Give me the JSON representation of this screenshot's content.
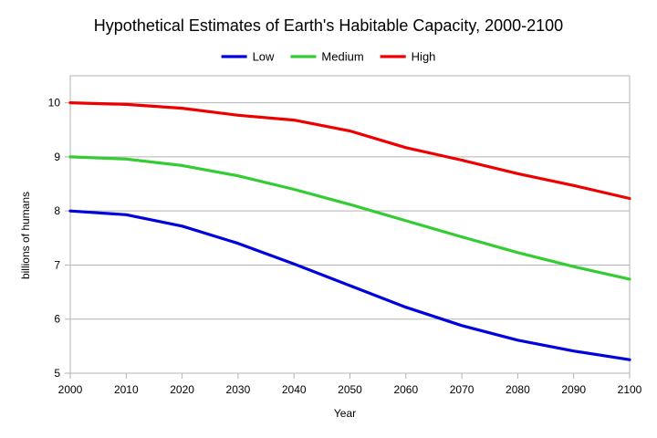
{
  "chart_data": {
    "type": "line",
    "title": "Hypothetical Estimates of Earth's Habitable Capacity, 2000-2100",
    "xlabel": "Year",
    "ylabel": "billions of humans",
    "x": [
      2000,
      2010,
      2020,
      2030,
      2040,
      2050,
      2060,
      2070,
      2080,
      2090,
      2100
    ],
    "xlim": [
      2000,
      2100
    ],
    "ylim": [
      5,
      10.5
    ],
    "yticks": [
      5,
      6,
      7,
      8,
      9,
      10
    ],
    "grid": "horizontal",
    "legend_position": "top",
    "series": [
      {
        "name": "Low",
        "color": "#0000dd",
        "values": [
          8.0,
          7.93,
          7.72,
          7.4,
          7.02,
          6.62,
          6.22,
          5.88,
          5.61,
          5.41,
          5.25
        ]
      },
      {
        "name": "Medium",
        "color": "#33cc33",
        "values": [
          9.0,
          8.96,
          8.84,
          8.65,
          8.4,
          8.12,
          7.82,
          7.52,
          7.23,
          6.97,
          6.74
        ]
      },
      {
        "name": "High",
        "color": "#ee0000",
        "values": [
          10.0,
          9.97,
          9.9,
          9.77,
          9.68,
          9.48,
          9.17,
          8.94,
          8.69,
          8.47,
          8.23
        ]
      }
    ]
  }
}
